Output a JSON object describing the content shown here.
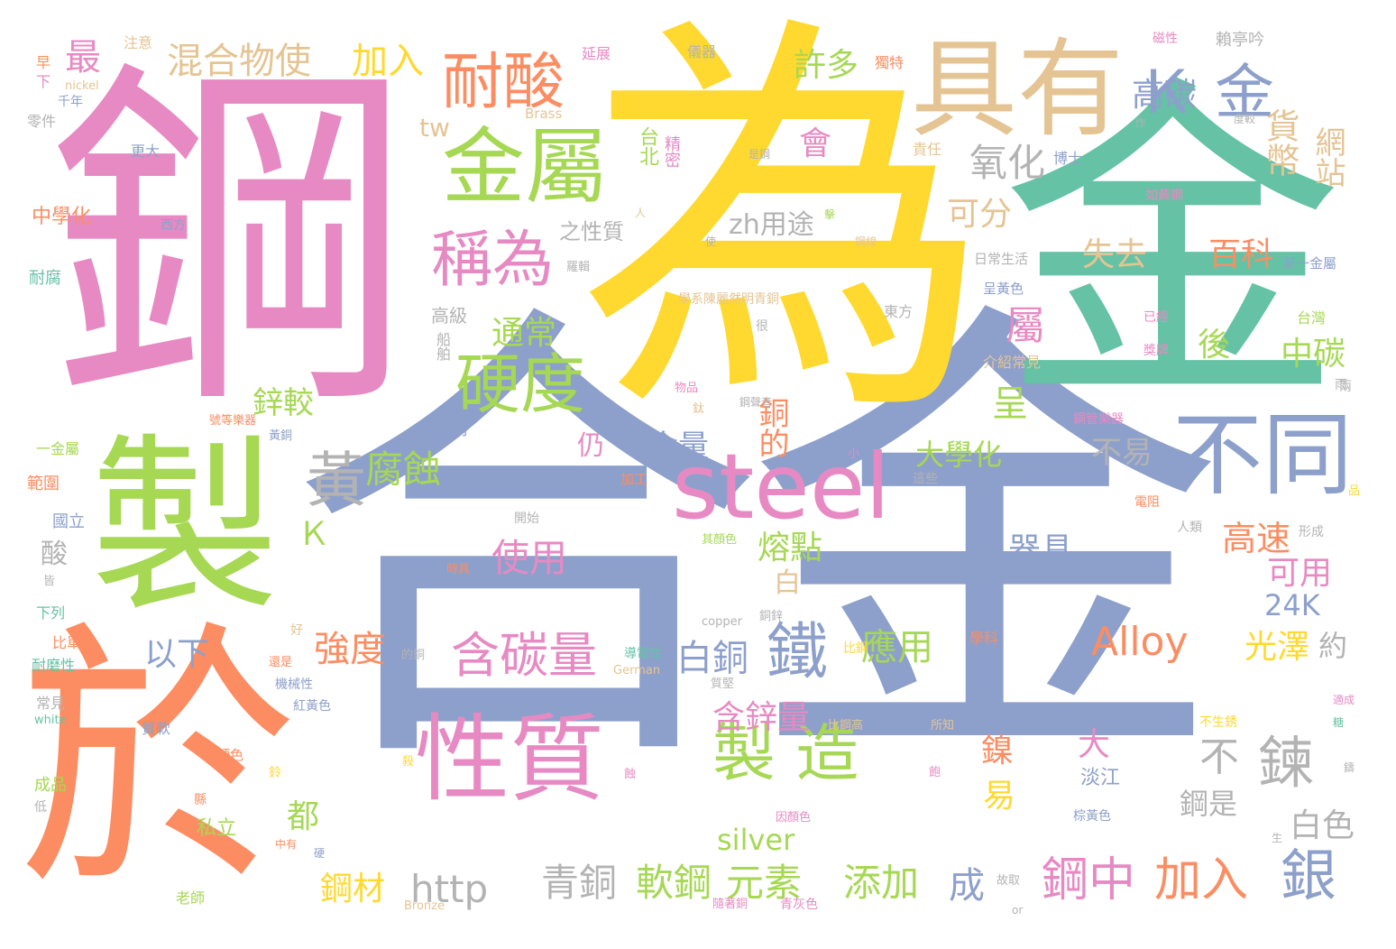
{
  "colors": {
    "pink": "#e78ac3",
    "yellow": "#ffd92f",
    "teal": "#66c2a5",
    "tan": "#e5c494",
    "green": "#a6d854",
    "orange": "#fc8d62",
    "blue": "#8da0cb",
    "gray": "#b3b3b3"
  },
  "words": [
    "合金",
    "為",
    "鋼",
    "金",
    "製",
    "於",
    "具有",
    "金屬",
    "steel",
    "性質",
    "耐酸",
    "不同",
    "Ｋ 金",
    "硬度",
    "稱為",
    "製 造",
    "鐵",
    "鍊",
    "銀",
    "鋼中",
    "加入",
    "黃",
    "混合物使",
    "加入",
    "最",
    "氧化",
    "貨幣",
    "網站",
    "高碳",
    "含碳量",
    "白銅",
    "強度",
    "以下",
    "腐蝕",
    "鋅較",
    "通常",
    "失去",
    "百科",
    "中碳",
    "可分",
    "Alloy",
    "光澤",
    "高速",
    "使用",
    "含量",
    "銅的",
    "熔點",
    "器具",
    "元素",
    "軟鋼",
    "青銅",
    "添加",
    "http",
    "鋼材",
    "白色",
    "鋼是",
    "可用",
    "24K",
    "約",
    "應用",
    "含鋅量",
    "不易",
    "大學化",
    "zh用途",
    "許多",
    "台北",
    "精密",
    "之性質",
    "tw",
    "會",
    "屬",
    "後",
    "呈",
    "易",
    "不",
    "大",
    "淡江",
    "成",
    "都",
    "silver",
    "Ｋ",
    "酸",
    "白",
    "仍",
    "鎳",
    "中學化",
    "耐腐",
    "國立",
    "範圍",
    "一金屬",
    "西元前",
    "高級",
    "船舶",
    "西方",
    "更大",
    "零件",
    "注意",
    "早",
    "下",
    "千年",
    "nickel",
    "Brass",
    "延展",
    "儀器",
    "獨特",
    "賴亭吟",
    "磁性",
    "作",
    "度較",
    "責任",
    "博士",
    "是鋼",
    "如黃鋼",
    "人",
    "單一金屬",
    "日常生活",
    "呈黃色",
    "台灣",
    "已經",
    "獎牌",
    "兩",
    "東方",
    "學系陳麗然明青銅",
    "很",
    "物品",
    "鈦",
    "鋼聲音",
    "銅管樂器",
    "號等樂器",
    "黃銅",
    "加工",
    "小",
    "這些",
    "開始",
    "電阻",
    "品",
    "人類",
    "形成",
    "其顏色",
    "時具",
    "copper",
    "銅鋅",
    "好",
    "導電性",
    "German",
    "比鋼",
    "學科",
    "的銅",
    "比單",
    "耐磨性",
    "質堅",
    "還是",
    "機械性",
    "紅黃色",
    "常見",
    "white",
    "質軟",
    "顏色",
    "比鋼高",
    "所知",
    "不生銹",
    "適成",
    "糖",
    "成品",
    "鈴",
    "殺",
    "蝕",
    "飽",
    "鑄",
    "低",
    "縣",
    "私立",
    "中有",
    "硬",
    "因顏色",
    "棕黃色",
    "生",
    "老師",
    "Bronze",
    "隨著銅",
    "青灰色",
    "故取",
    "or",
    "下列",
    "皆",
    "使",
    "擊",
    "鋼線",
    "羅輯",
    "介紹常見",
    "雨"
  ]
}
